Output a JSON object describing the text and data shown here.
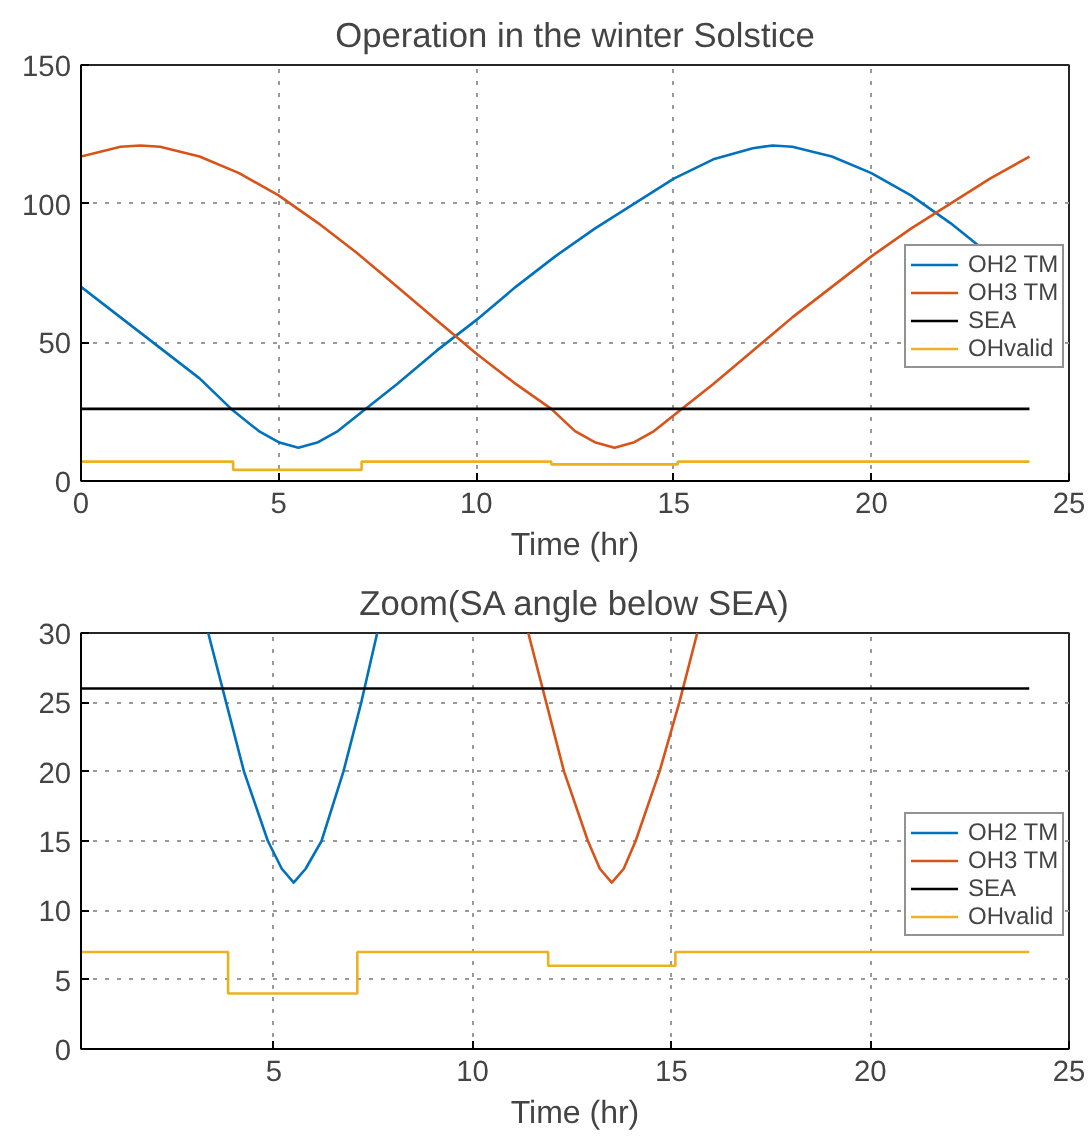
{
  "chart_data": [
    {
      "type": "line",
      "title": "Operation in the winter Solstice",
      "xlabel": "Time (hr)",
      "xlim": [
        0,
        25
      ],
      "ylim": [
        0,
        150
      ],
      "xticks": [
        0,
        5,
        10,
        15,
        20,
        25
      ],
      "yticks": [
        0,
        50,
        100,
        150
      ],
      "grid": true,
      "legend": "right",
      "line_style": "solid",
      "marker": "none",
      "series": [
        {
          "name": "OH2 TM",
          "color": "#0072bd",
          "x": [
            0,
            1,
            2,
            3,
            3.8,
            4.5,
            5,
            5.5,
            6,
            6.5,
            7.2,
            8,
            9,
            10,
            11,
            12,
            13,
            14,
            15,
            16,
            17,
            17.5,
            18,
            19,
            20,
            21,
            22,
            22.7
          ],
          "values": [
            70,
            59,
            48,
            37,
            26,
            18,
            14,
            12,
            14,
            18,
            26,
            35,
            47,
            58,
            70,
            81,
            91,
            100,
            109,
            116,
            120,
            121,
            120.5,
            117,
            111,
            103,
            93,
            85
          ]
        },
        {
          "name": "OH3 TM",
          "color": "#d95319",
          "x": [
            0,
            1,
            1.5,
            2,
            3,
            4,
            5,
            6,
            7,
            8,
            9,
            10,
            11,
            11.9,
            12.5,
            13,
            13.5,
            14,
            14.5,
            15.2,
            16,
            17,
            18,
            19,
            20,
            21,
            22,
            23,
            24
          ],
          "values": [
            117,
            120.5,
            121,
            120.5,
            117,
            111,
            103,
            93,
            82,
            70,
            58,
            46,
            35,
            26,
            18,
            14,
            12,
            14,
            18,
            26,
            35,
            47,
            59,
            70,
            81,
            91,
            100,
            109,
            117
          ]
        },
        {
          "name": "SEA",
          "color": "#000000",
          "x": [
            0,
            24
          ],
          "values": [
            26,
            26
          ]
        },
        {
          "name": "OHvalid",
          "color": "#edb120",
          "type": "step",
          "x": [
            0,
            3.85,
            7.1,
            11.9,
            15.1,
            24
          ],
          "values": [
            7,
            4,
            7,
            6,
            7,
            7
          ]
        }
      ]
    },
    {
      "type": "line",
      "title": "Zoom(SA angle below SEA)",
      "xlabel": "Time (hr)",
      "xlim": [
        0.15,
        25
      ],
      "ylim": [
        0,
        30
      ],
      "xticks": [
        5,
        10,
        15,
        20,
        25
      ],
      "yticks": [
        0,
        5,
        10,
        15,
        20,
        25,
        30
      ],
      "grid": true,
      "legend": "right",
      "line_style": "solid",
      "marker": "none",
      "series": [
        {
          "name": "OH2 TM",
          "color": "#0072bd",
          "x": [
            3.35,
            3.8,
            4.25,
            4.85,
            5.2,
            5.5,
            5.8,
            6.2,
            6.75,
            7.2,
            7.6
          ],
          "values": [
            30,
            25,
            20,
            15,
            13,
            12,
            13,
            15,
            20,
            25,
            30
          ]
        },
        {
          "name": "OH3 TM",
          "color": "#d95319",
          "x": [
            11.4,
            11.85,
            12.3,
            12.9,
            13.2,
            13.5,
            13.8,
            14.1,
            14.7,
            15.2,
            15.65
          ],
          "values": [
            30,
            25,
            20,
            15,
            13,
            12,
            13,
            15,
            20,
            25,
            30
          ]
        },
        {
          "name": "SEA",
          "color": "#000000",
          "x": [
            0.15,
            24
          ],
          "values": [
            26,
            26
          ]
        },
        {
          "name": "OHvalid",
          "color": "#edb120",
          "type": "step",
          "x": [
            0.15,
            3.85,
            7.1,
            11.9,
            15.1,
            24
          ],
          "values": [
            7,
            4,
            7,
            6,
            7,
            7
          ]
        }
      ]
    }
  ]
}
